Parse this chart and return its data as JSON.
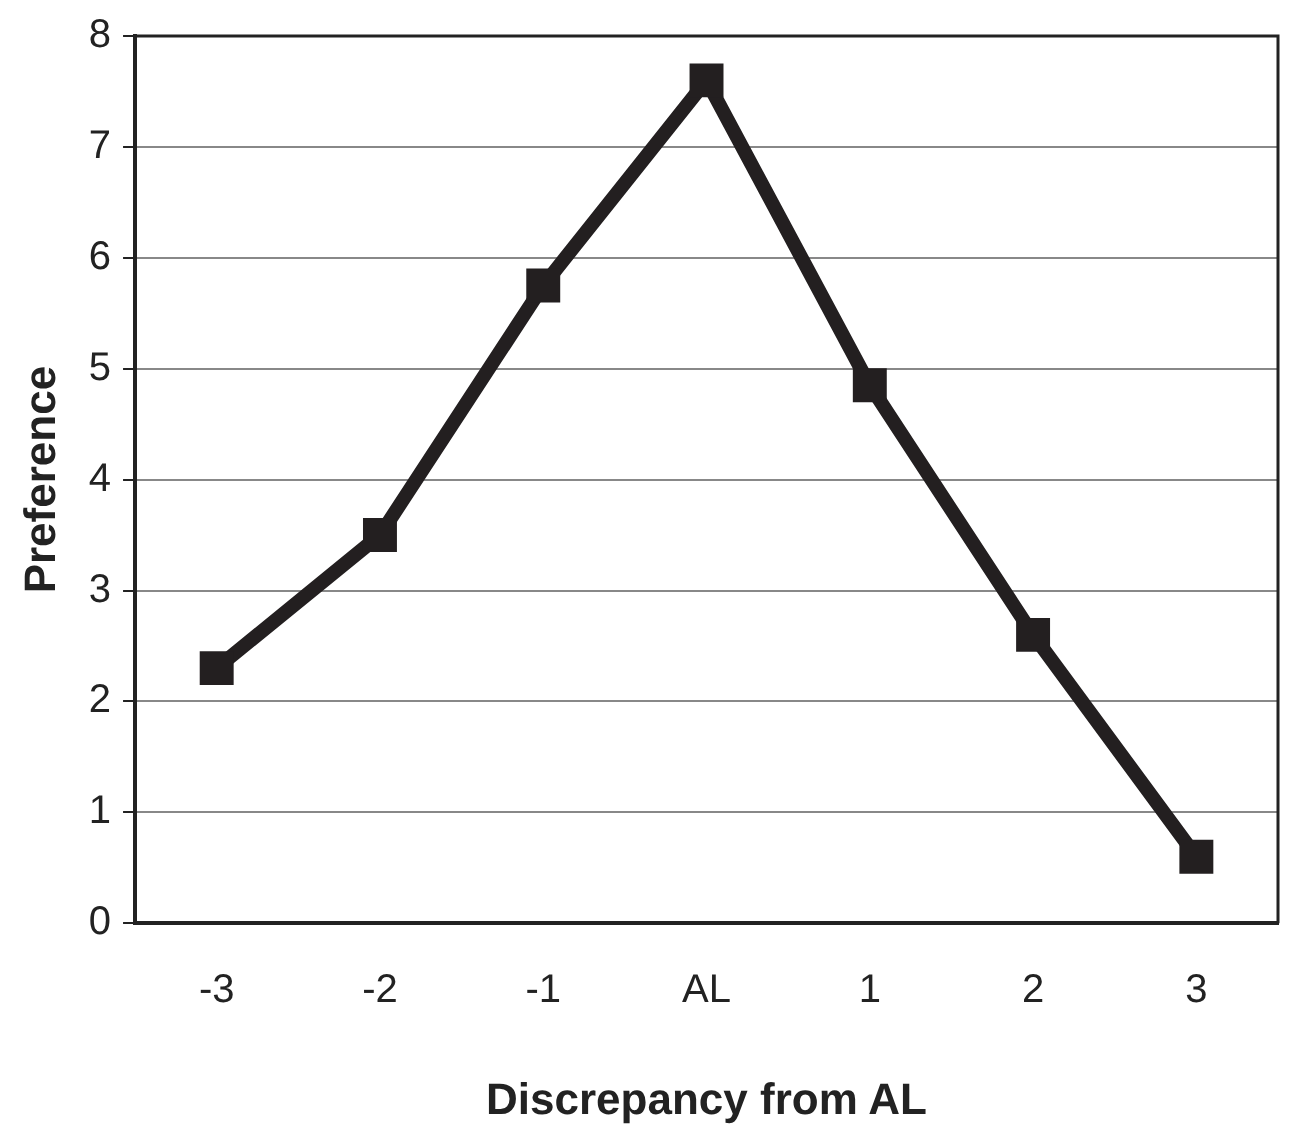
{
  "chart_data": {
    "type": "line",
    "xlabel": "Discrepancy from AL",
    "ylabel": "Preference",
    "categories": [
      "-3",
      "-2",
      "-1",
      "AL",
      "1",
      "2",
      "3"
    ],
    "series": [
      {
        "color": "#231f20",
        "values": [
          2.3,
          3.5,
          5.75,
          7.6,
          4.85,
          2.6,
          0.6
        ]
      }
    ],
    "ylim": [
      0,
      8
    ],
    "yticks": [
      0,
      1,
      2,
      3,
      4,
      5,
      6,
      7,
      8
    ],
    "grid": "y",
    "legend": false,
    "marker": "square",
    "line_style": "solid"
  }
}
